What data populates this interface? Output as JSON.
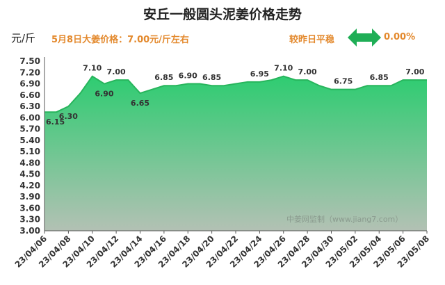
{
  "header": {
    "title": "安丘一般圆头泥姜价格走势",
    "unit": "元/斤",
    "price_note": "5月8日大姜价格：7.00元/斤左右",
    "compare_label": "较昨日平稳",
    "compare_value": "0.00%",
    "compare_icon": "left-right-arrow-icon"
  },
  "watermark": "中姜网监制（www.jiang7.com）",
  "colors": {
    "accent": "#e3892d",
    "area_top": "#2ecc71",
    "area_bottom": "#b3c1b4",
    "line": "#27b55c",
    "arrow": "#1fae56"
  },
  "chart_data": {
    "type": "area",
    "title": "安丘一般圆头泥姜价格走势",
    "xlabel": "",
    "ylabel": "元/斤",
    "ylim": [
      3.0,
      7.5
    ],
    "yticks": [
      "7.50",
      "7.20",
      "6.90",
      "6.60",
      "6.30",
      "6.00",
      "5.70",
      "5.40",
      "5.10",
      "4.80",
      "4.50",
      "4.20",
      "3.90",
      "3.60",
      "3.30",
      "3.00"
    ],
    "ytick_values": [
      7.5,
      7.2,
      6.9,
      6.6,
      6.3,
      6.0,
      5.7,
      5.4,
      5.1,
      4.8,
      4.5,
      4.2,
      3.9,
      3.6,
      3.3,
      3.0
    ],
    "xtick_labels": [
      "23/04/06",
      "23/04/08",
      "23/04/10",
      "23/04/12",
      "23/04/14",
      "23/04/16",
      "23/04/18",
      "23/04/20",
      "23/04/22",
      "23/04/24",
      "23/04/26",
      "23/04/28",
      "23/04/30",
      "23/05/02",
      "23/05/04",
      "23/05/06",
      "23/05/08"
    ],
    "x": [
      "23/04/06",
      "23/04/07",
      "23/04/08",
      "23/04/09",
      "23/04/10",
      "23/04/11",
      "23/04/12",
      "23/04/13",
      "23/04/14",
      "23/04/15",
      "23/04/16",
      "23/04/17",
      "23/04/18",
      "23/04/19",
      "23/04/20",
      "23/04/21",
      "23/04/22",
      "23/04/23",
      "23/04/24",
      "23/04/25",
      "23/04/26",
      "23/04/27",
      "23/04/28",
      "23/04/29",
      "23/04/30",
      "23/05/01",
      "23/05/02",
      "23/05/03",
      "23/05/04",
      "23/05/05",
      "23/05/06",
      "23/05/07",
      "23/05/08"
    ],
    "values": [
      6.15,
      6.15,
      6.3,
      6.65,
      7.1,
      6.9,
      7.0,
      7.0,
      6.65,
      6.75,
      6.85,
      6.85,
      6.9,
      6.9,
      6.85,
      6.85,
      6.9,
      6.95,
      6.95,
      7.0,
      7.1,
      7.0,
      7.0,
      6.85,
      6.75,
      6.75,
      6.75,
      6.85,
      6.85,
      6.85,
      7.0,
      7.0,
      7.0
    ],
    "data_labels": [
      {
        "x": "23/04/06",
        "text": "6.15",
        "pos": "below"
      },
      {
        "x": "23/04/08",
        "text": "6.30",
        "pos": "below"
      },
      {
        "x": "23/04/10",
        "text": "7.10",
        "pos": "above"
      },
      {
        "x": "23/04/11",
        "text": "6.90",
        "pos": "below"
      },
      {
        "x": "23/04/12",
        "text": "7.00",
        "pos": "above"
      },
      {
        "x": "23/04/14",
        "text": "6.65",
        "pos": "below"
      },
      {
        "x": "23/04/16",
        "text": "6.85",
        "pos": "above"
      },
      {
        "x": "23/04/18",
        "text": "6.90",
        "pos": "above"
      },
      {
        "x": "23/04/20",
        "text": "6.85",
        "pos": "above"
      },
      {
        "x": "23/04/24",
        "text": "6.95",
        "pos": "above"
      },
      {
        "x": "23/04/26",
        "text": "7.10",
        "pos": "above"
      },
      {
        "x": "23/04/28",
        "text": "7.00",
        "pos": "above"
      },
      {
        "x": "23/05/01",
        "text": "6.75",
        "pos": "above"
      },
      {
        "x": "23/05/04",
        "text": "6.85",
        "pos": "above"
      },
      {
        "x": "23/05/07",
        "text": "7.00",
        "pos": "above"
      }
    ],
    "grid": false,
    "legend": "none"
  }
}
